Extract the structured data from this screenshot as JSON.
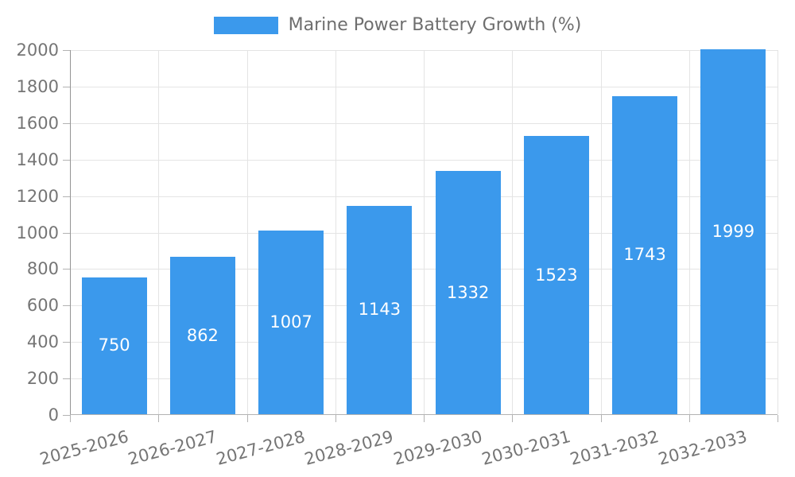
{
  "chart_data": {
    "type": "bar",
    "title": "Marine Power Battery Growth (%)",
    "categories": [
      "2025-2026",
      "2026-2027",
      "2027-2028",
      "2028-2029",
      "2029-2030",
      "2030-2031",
      "2031-2032",
      "2032-2033"
    ],
    "values": [
      750,
      862,
      1007,
      1143,
      1332,
      1523,
      1743,
      1999
    ],
    "xlabel": "",
    "ylabel": "",
    "ylim": [
      0,
      2000
    ],
    "ytick_step": 200,
    "yticks": [
      0,
      200,
      400,
      600,
      800,
      1000,
      1200,
      1400,
      1600,
      1800,
      2000
    ],
    "grid": true,
    "legend_position": "top-center",
    "bar_label_position": "inside-center",
    "x_label_rotation_deg": -15,
    "colors": {
      "bar": "#3b99ec",
      "bar_label": "#ffffff",
      "grid": "#e4e4e4",
      "y_axis_line": "#949494",
      "x_axis_line": "#b3b3b3",
      "axis_text": "#757575",
      "legend_text": "#6e6e6e"
    }
  }
}
